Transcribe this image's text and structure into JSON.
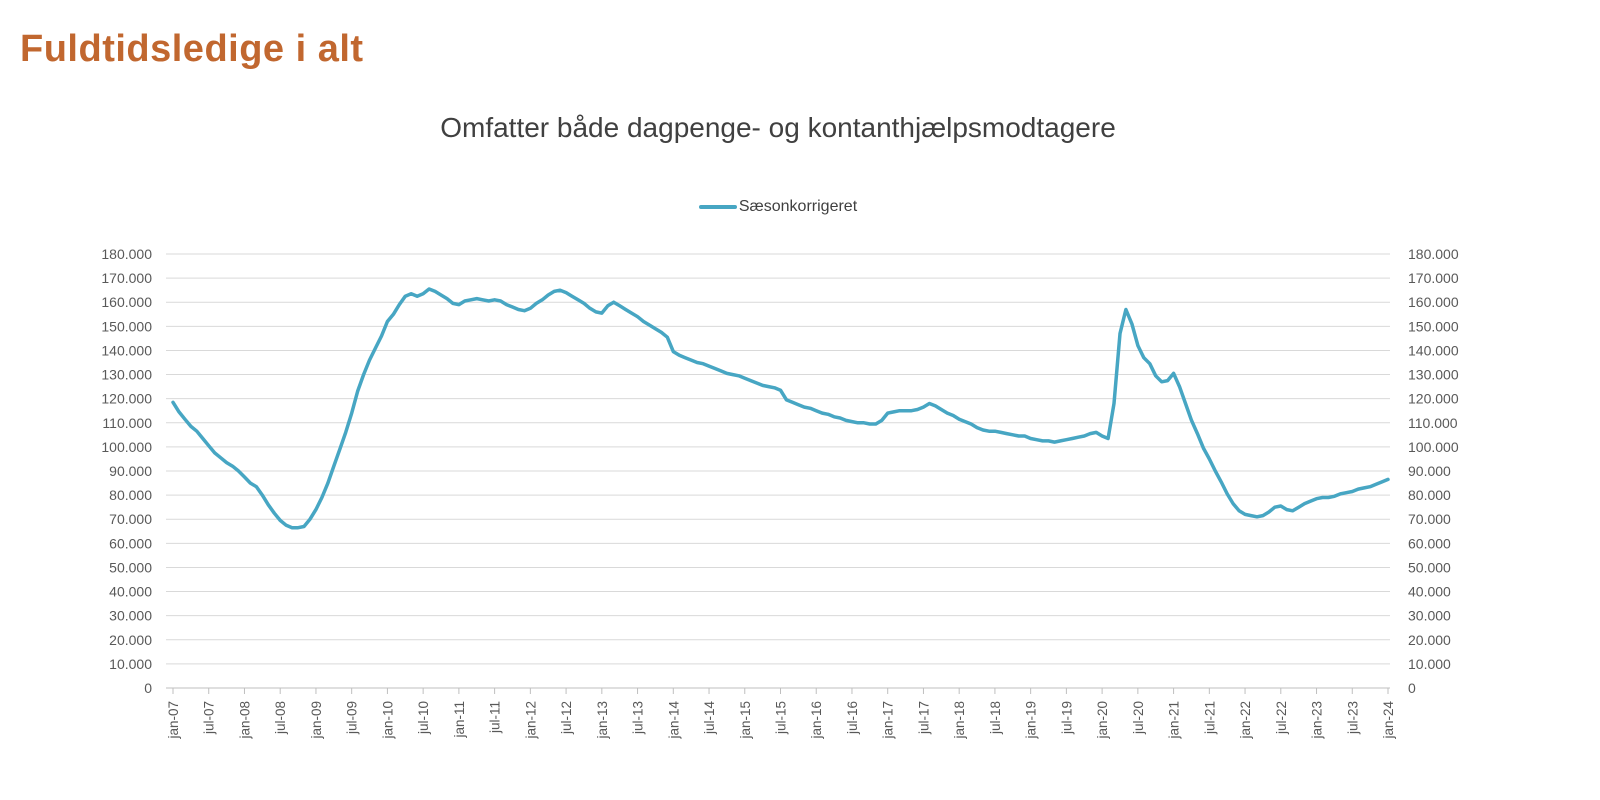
{
  "page": {
    "title": "Fuldtidsledige i alt",
    "subtitle": "Omfatter både dagpenge- og kontanthjælpsmodtagere"
  },
  "legend": {
    "label": "Sæsonkorrigeret"
  },
  "colors": {
    "title": "#C1672F",
    "subtitle": "#404040",
    "axis_text": "#595959",
    "gridline": "#D9D9D9",
    "axis_line": "#BFBFBF",
    "line": "#47A6C3",
    "background": "#FFFFFF"
  },
  "chart_data": {
    "type": "line",
    "title": "Omfatter både dagpenge- og kontanthjælpsmodtagere",
    "xlabel": "",
    "ylabel": "",
    "x_frequency": "monthly",
    "x_start": "jan-07",
    "x_end": "jan-24",
    "ylim": [
      0,
      180000
    ],
    "y_step": 10000,
    "grid": "horizontal",
    "legend_position": "top-center",
    "y_axis_labels": "both-sides",
    "x_tick_labels": [
      "jan-07",
      "jul-07",
      "jan-08",
      "jul-08",
      "jan-09",
      "jul-09",
      "jan-10",
      "jul-10",
      "jan-11",
      "jul-11",
      "jan-12",
      "jul-12",
      "jan-13",
      "jul-13",
      "jan-14",
      "jul-14",
      "jan-15",
      "jul-15",
      "jan-16",
      "jul-16",
      "jan-17",
      "jul-17",
      "jan-18",
      "jul-18",
      "jan-19",
      "jul-19",
      "jan-20",
      "jul-20",
      "jan-21",
      "jul-21",
      "jan-22",
      "jul-22",
      "jan-23",
      "jul-23",
      "jan-24"
    ],
    "y_tick_labels": [
      "0",
      "10.000",
      "20.000",
      "30.000",
      "40.000",
      "50.000",
      "60.000",
      "70.000",
      "80.000",
      "90.000",
      "100.000",
      "110.000",
      "120.000",
      "130.000",
      "140.000",
      "150.000",
      "160.000",
      "170.000",
      "180.000"
    ],
    "series": [
      {
        "name": "Sæsonkorrigeret",
        "color": "#47A6C3",
        "values": [
          118500,
          114500,
          111500,
          108500,
          106500,
          103500,
          100500,
          97500,
          95500,
          93500,
          92000,
          90000,
          87500,
          85000,
          83500,
          80000,
          76000,
          72500,
          69500,
          67500,
          66500,
          66500,
          67000,
          70000,
          74000,
          79000,
          85000,
          92000,
          99000,
          106000,
          114000,
          123000,
          130000,
          136000,
          141000,
          146000,
          152000,
          155000,
          159000,
          162500,
          163500,
          162500,
          163500,
          165500,
          164500,
          163000,
          161500,
          159500,
          159000,
          160500,
          161000,
          161500,
          161000,
          160500,
          161000,
          160500,
          159000,
          158000,
          157000,
          156500,
          157500,
          159500,
          161000,
          163000,
          164500,
          165000,
          164000,
          162500,
          161000,
          159500,
          157500,
          156000,
          155500,
          158500,
          160000,
          158500,
          157000,
          155500,
          154000,
          152000,
          150500,
          149000,
          147500,
          145500,
          139500,
          138000,
          137000,
          136000,
          135000,
          134500,
          133500,
          132500,
          131500,
          130500,
          130000,
          129500,
          128500,
          127500,
          126500,
          125500,
          125000,
          124500,
          123500,
          119500,
          118500,
          117500,
          116500,
          116000,
          115000,
          114000,
          113500,
          112500,
          112000,
          111000,
          110500,
          110000,
          110000,
          109500,
          109500,
          111000,
          114000,
          114500,
          115000,
          115000,
          115000,
          115500,
          116500,
          118000,
          117000,
          115500,
          114000,
          113000,
          111500,
          110500,
          109500,
          108000,
          107000,
          106500,
          106500,
          106000,
          105500,
          105000,
          104500,
          104500,
          103500,
          103000,
          102500,
          102500,
          102000,
          102500,
          103000,
          103500,
          104000,
          104500,
          105500,
          106000,
          104500,
          103500,
          118000,
          147000,
          157000,
          151000,
          142000,
          137000,
          134500,
          129500,
          127000,
          127500,
          130500,
          125000,
          118000,
          111000,
          105500,
          99500,
          95000,
          90000,
          85500,
          80500,
          76500,
          73500,
          72000,
          71500,
          71000,
          71500,
          73000,
          75000,
          75500,
          74000,
          73500,
          75000,
          76500,
          77500,
          78500,
          79000,
          79000,
          79500,
          80500,
          81000,
          81500,
          82500,
          83000,
          83500,
          84500,
          85500,
          86500
        ]
      }
    ]
  }
}
